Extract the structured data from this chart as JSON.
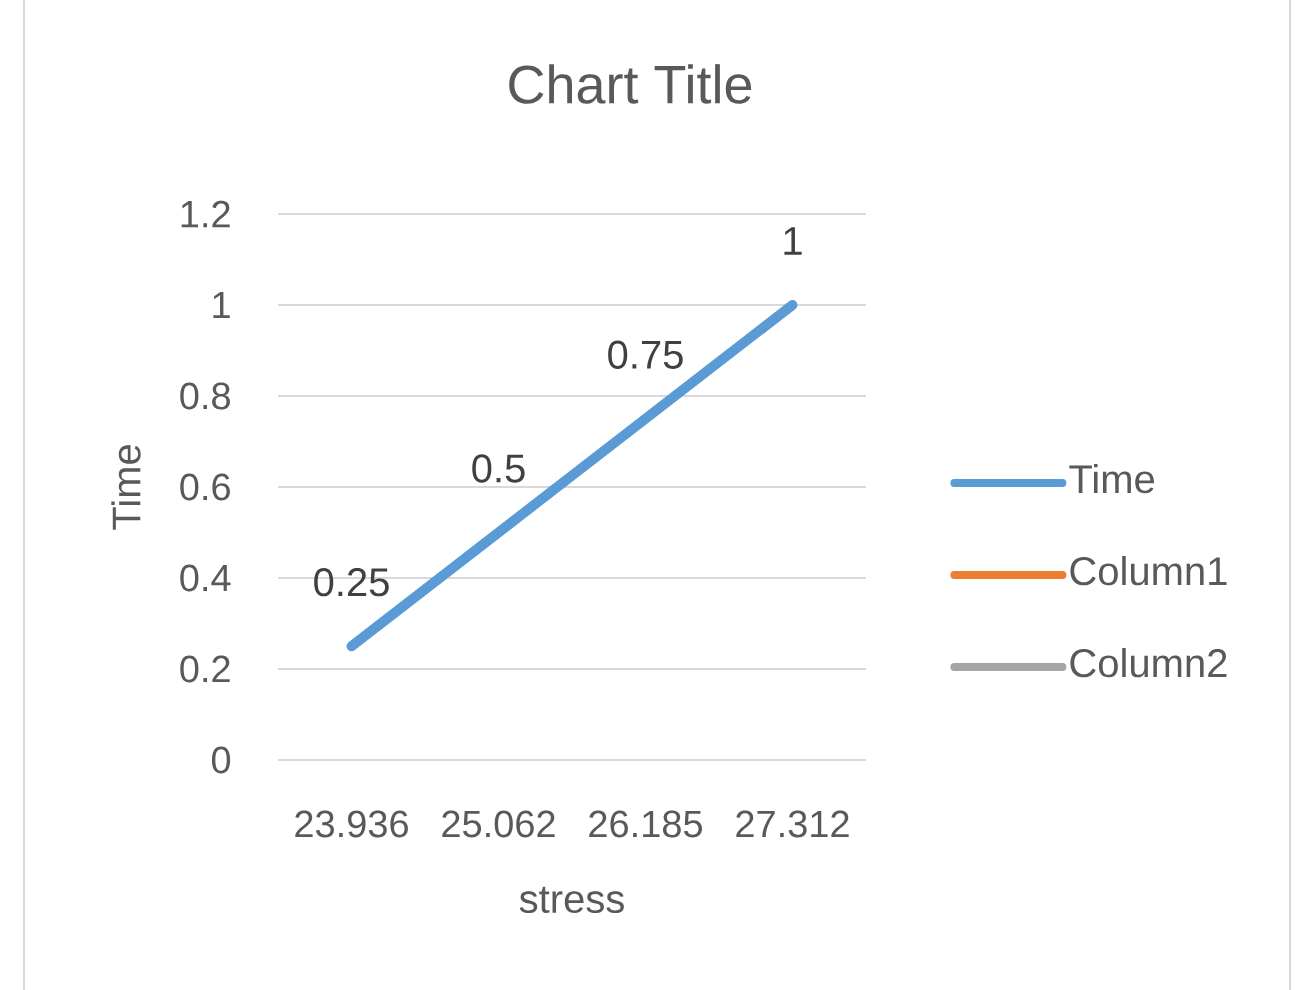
{
  "chart_data": {
    "type": "line",
    "title": "Chart Title",
    "xlabel": "stress",
    "ylabel": "Time",
    "categories": [
      "23.936",
      "25.062",
      "26.185",
      "27.312"
    ],
    "series": [
      {
        "name": "Time",
        "color": "#5b9bd5",
        "values": [
          0.25,
          0.5,
          0.75,
          1
        ]
      },
      {
        "name": "Column1",
        "color": "#ed7d31",
        "values": [
          null,
          null,
          null,
          null
        ]
      },
      {
        "name": "Column2",
        "color": "#a5a5a5",
        "values": [
          null,
          null,
          null,
          null
        ]
      }
    ],
    "ylim": [
      0,
      1.2
    ],
    "yticks": [
      0,
      0.2,
      0.4,
      0.6,
      0.8,
      1,
      1.2
    ],
    "grid": "y",
    "legend": "right",
    "data_labels": true,
    "marker": "none",
    "line_style": "solid"
  }
}
